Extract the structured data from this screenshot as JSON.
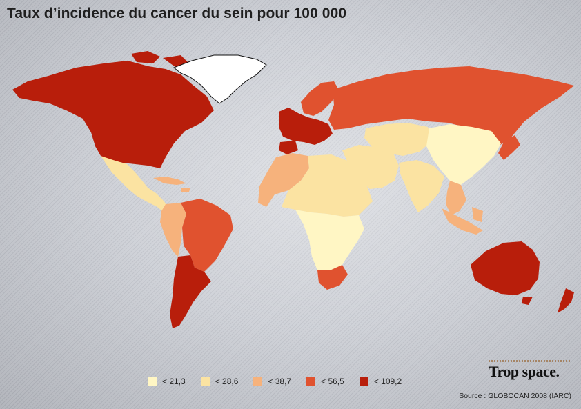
{
  "title": "Taux d’incidence du cancer du sein pour 100 000",
  "legend": [
    {
      "label": "< 21,3",
      "color": "#fff6c4"
    },
    {
      "label": "< 28,6",
      "color": "#fbe3a2"
    },
    {
      "label": "< 38,7",
      "color": "#f6b27c"
    },
    {
      "label": "< 56,5",
      "color": "#e0522f"
    },
    {
      "label": "< 109,2",
      "color": "#b81e0b"
    }
  ],
  "brand": "Trop space.",
  "source": "Source : GLOBOCAN 2008 (IARC)",
  "map": {
    "unclassified_color": "#ffffff",
    "regions": [
      {
        "name": "North America",
        "class": "< 109,2"
      },
      {
        "name": "Greenland",
        "class": "none"
      },
      {
        "name": "Mexico and Central America",
        "class": "< 28,6"
      },
      {
        "name": "Caribbean",
        "class": "< 38,7"
      },
      {
        "name": "Andean South America",
        "class": "< 38,7"
      },
      {
        "name": "Brazil",
        "class": "< 56,5"
      },
      {
        "name": "Southern Cone",
        "class": "< 109,2"
      },
      {
        "name": "Western Europe",
        "class": "< 109,2"
      },
      {
        "name": "Scandinavia",
        "class": "< 56,5"
      },
      {
        "name": "Russia",
        "class": "< 56,5"
      },
      {
        "name": "North-West Africa",
        "class": "< 38,7"
      },
      {
        "name": "Sahara",
        "class": "< 28,6"
      },
      {
        "name": "Sub-Saharan Africa",
        "class": "< 21,3"
      },
      {
        "name": "South Africa",
        "class": "< 56,5"
      },
      {
        "name": "Middle East",
        "class": "< 28,6"
      },
      {
        "name": "Central Asia",
        "class": "< 28,6"
      },
      {
        "name": "South Asia",
        "class": "< 28,6"
      },
      {
        "name": "China",
        "class": "< 21,3"
      },
      {
        "name": "Japan",
        "class": "< 56,5"
      },
      {
        "name": "South-East Asia",
        "class": "< 38,7"
      },
      {
        "name": "Australia",
        "class": "< 109,2"
      },
      {
        "name": "New Zealand",
        "class": "< 109,2"
      }
    ]
  }
}
